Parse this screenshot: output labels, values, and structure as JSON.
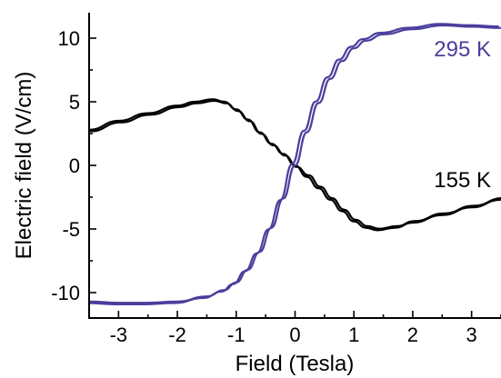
{
  "chart_data": {
    "type": "line",
    "xlabel": "Field (Tesla)",
    "ylabel": "Electric field (V/cm)",
    "xlim": [
      -3.5,
      3.5
    ],
    "ylim": [
      -12,
      12
    ],
    "xticks": [
      -3,
      -2,
      -1,
      0,
      1,
      2,
      3
    ],
    "yticks": [
      -10,
      -5,
      0,
      5,
      10
    ],
    "xtick_labels": [
      "-3",
      "-2",
      "-1",
      "0",
      "1",
      "2",
      "3"
    ],
    "ytick_labels": [
      "-10",
      "-5",
      "0",
      "5",
      "10"
    ],
    "series": [
      {
        "name": "155 K",
        "color": "#000000",
        "x": [
          -3.5,
          -3.0,
          -2.5,
          -2.0,
          -1.7,
          -1.4,
          -1.2,
          -1.0,
          -0.8,
          -0.6,
          -0.4,
          -0.2,
          0.0,
          0.2,
          0.4,
          0.6,
          0.8,
          1.0,
          1.2,
          1.4,
          1.7,
          2.0,
          2.5,
          3.0,
          3.5
        ],
        "y": [
          2.8,
          3.5,
          4.1,
          4.7,
          5.0,
          5.2,
          5.0,
          4.4,
          3.6,
          2.6,
          1.7,
          0.9,
          0.0,
          -0.9,
          -1.8,
          -2.7,
          -3.6,
          -4.4,
          -4.9,
          -5.1,
          -4.9,
          -4.5,
          -3.9,
          -3.3,
          -2.7
        ],
        "label_text": "155 K"
      },
      {
        "name": "295 K",
        "color": "#4a3f9c",
        "x": [
          -3.5,
          -3.0,
          -2.5,
          -2.0,
          -1.5,
          -1.2,
          -1.0,
          -0.8,
          -0.6,
          -0.4,
          -0.2,
          0.0,
          0.2,
          0.4,
          0.6,
          0.8,
          1.0,
          1.2,
          1.5,
          2.0,
          2.5,
          3.0,
          3.5
        ],
        "y": [
          -10.7,
          -10.8,
          -10.8,
          -10.7,
          -10.3,
          -9.8,
          -9.2,
          -8.2,
          -6.8,
          -4.9,
          -2.6,
          0.0,
          2.6,
          4.9,
          6.8,
          8.2,
          9.2,
          9.8,
          10.3,
          10.7,
          11.0,
          10.9,
          10.8
        ],
        "label_text": "295 K"
      }
    ]
  }
}
